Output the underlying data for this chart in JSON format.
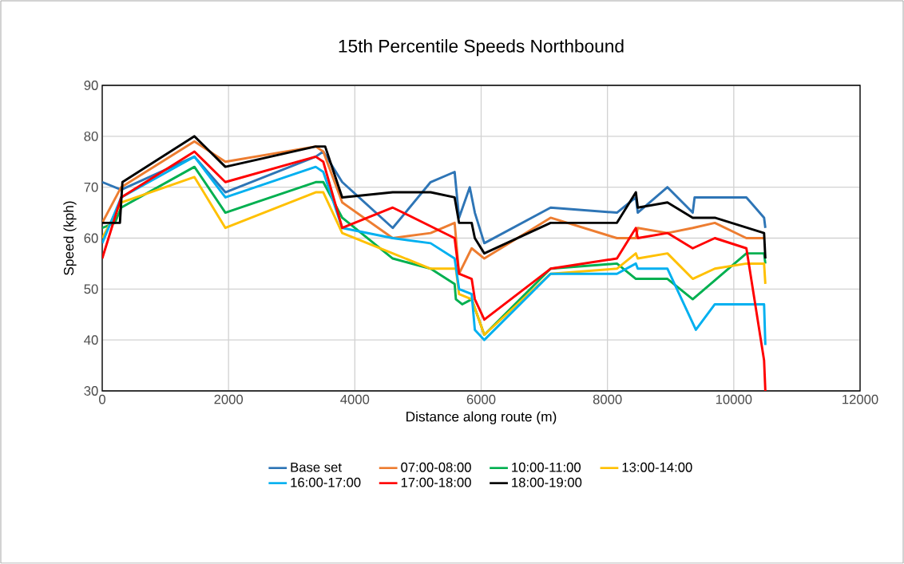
{
  "chart_data": {
    "type": "line",
    "title": "15th Percentile Speeds Northbound",
    "xlabel": "Distance along route (m)",
    "ylabel": "Speed (kph)",
    "xlim": [
      0,
      12000
    ],
    "xticks": [
      0,
      2000,
      4000,
      6000,
      8000,
      10000,
      12000
    ],
    "ylim": [
      30,
      90
    ],
    "yticks": [
      30,
      40,
      50,
      60,
      70,
      80,
      90
    ],
    "grid": true,
    "legend": "bottom",
    "marker": "none",
    "line_style": "solid",
    "series": [
      {
        "name": "Base set",
        "color": "#2e75b6",
        "x": [
          0,
          300,
          1460,
          1950,
          3380,
          3500,
          3800,
          4600,
          5200,
          5580,
          5650,
          5820,
          5900,
          6050,
          7100,
          8150,
          8450,
          8480,
          8950,
          9350,
          9380,
          10200,
          10480,
          10500
        ],
        "values": [
          71,
          69.5,
          76,
          69,
          76,
          77,
          71,
          62,
          71,
          73,
          64,
          70,
          65,
          59,
          66,
          65,
          68,
          65,
          70,
          65,
          68,
          68,
          64,
          62
        ]
      },
      {
        "name": "07:00-08:00",
        "color": "#ed7d31",
        "x": [
          0,
          300,
          1460,
          1950,
          3380,
          3500,
          3800,
          4600,
          5200,
          5580,
          5650,
          5850,
          6050,
          7100,
          8150,
          8450,
          8480,
          8950,
          9350,
          9700,
          10200,
          10480
        ],
        "values": [
          63,
          70,
          79,
          75,
          78,
          77,
          67,
          60,
          61,
          63,
          53,
          58,
          56,
          64,
          60,
          60,
          62,
          61,
          62,
          63,
          60,
          60
        ]
      },
      {
        "name": "10:00-11:00",
        "color": "#00b050",
        "x": [
          0,
          200,
          300,
          1460,
          1950,
          3380,
          3500,
          3800,
          4600,
          5200,
          5580,
          5600,
          5700,
          5850,
          6050,
          7100,
          8150,
          8450,
          8950,
          9350,
          10200,
          10480,
          10500
        ],
        "values": [
          62,
          63,
          66,
          74,
          65,
          71,
          71,
          64,
          56,
          54,
          51,
          48,
          47,
          48,
          41,
          54,
          55,
          52,
          52,
          48,
          57,
          57,
          55
        ]
      },
      {
        "name": "13:00-14:00",
        "color": "#ffc000",
        "x": [
          0,
          300,
          1460,
          1950,
          3380,
          3500,
          3800,
          4600,
          5200,
          5600,
          5650,
          5850,
          6050,
          7100,
          8150,
          8450,
          8480,
          8950,
          9350,
          9700,
          10200,
          10480,
          10500
        ],
        "values": [
          60,
          67,
          72,
          62,
          69,
          69,
          61,
          57,
          54,
          54,
          49,
          48,
          41,
          53,
          54,
          57,
          56,
          57,
          52,
          54,
          55,
          55,
          51
        ]
      },
      {
        "name": "16:00-17:00",
        "color": "#00b0f0",
        "x": [
          0,
          300,
          1460,
          1950,
          3380,
          3500,
          3800,
          4600,
          5200,
          5580,
          5650,
          5850,
          5900,
          6050,
          7100,
          8150,
          8450,
          8480,
          8950,
          9400,
          9700,
          10200,
          10480,
          10500
        ],
        "values": [
          59,
          68,
          76,
          68,
          74,
          73,
          62,
          60,
          59,
          56,
          50,
          49,
          42,
          40,
          53,
          53,
          55,
          54,
          54,
          42,
          47,
          47,
          47,
          39
        ]
      },
      {
        "name": "17:00-18:00",
        "color": "#ff0000",
        "x": [
          0,
          300,
          1460,
          1950,
          3380,
          3500,
          3800,
          4600,
          5580,
          5650,
          5850,
          5900,
          6050,
          7100,
          8150,
          8450,
          8480,
          8950,
          9350,
          9700,
          10200,
          10480,
          10500
        ],
        "values": [
          56,
          68,
          77,
          71,
          76,
          75,
          62,
          66,
          60,
          53,
          52,
          48,
          44,
          54,
          56,
          62,
          60,
          61,
          58,
          60,
          58,
          36,
          30
        ]
      },
      {
        "name": "18:00-19:00",
        "color": "#000000",
        "x": [
          0,
          280,
          320,
          1460,
          1950,
          3380,
          3530,
          3800,
          4600,
          5200,
          5580,
          5650,
          5850,
          5900,
          6050,
          7100,
          8150,
          8450,
          8480,
          8950,
          9350,
          9700,
          10480,
          10500
        ],
        "values": [
          63,
          63,
          71,
          80,
          74,
          78,
          78,
          68,
          69,
          69,
          68,
          63,
          63,
          60,
          57,
          63,
          63,
          69,
          66,
          67,
          64,
          64,
          61,
          56
        ]
      }
    ]
  }
}
